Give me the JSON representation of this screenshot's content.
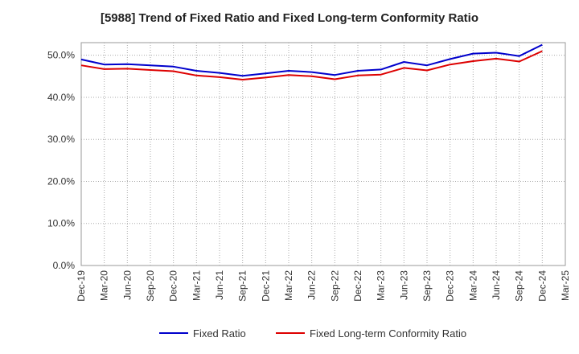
{
  "chart_data": {
    "type": "line",
    "title": "[5988]  Trend of Fixed Ratio and Fixed Long-term Conformity Ratio",
    "xlabel": "",
    "ylabel": "",
    "x": [
      "Dec-19",
      "Mar-20",
      "Jun-20",
      "Sep-20",
      "Dec-20",
      "Mar-21",
      "Jun-21",
      "Sep-21",
      "Dec-21",
      "Mar-22",
      "Jun-22",
      "Sep-22",
      "Dec-22",
      "Mar-23",
      "Jun-23",
      "Sep-23",
      "Dec-23",
      "Mar-24",
      "Jun-24",
      "Sep-24",
      "Dec-24",
      "Mar-25"
    ],
    "y_ticks": [
      "0.0%",
      "10.0%",
      "20.0%",
      "30.0%",
      "40.0%",
      "50.0%"
    ],
    "ylim": [
      0,
      53
    ],
    "grid": true,
    "legend_position": "bottom",
    "series": [
      {
        "name": "Fixed Ratio",
        "color": "#0000cc",
        "values": [
          49.0,
          47.8,
          47.9,
          47.6,
          47.3,
          46.3,
          45.8,
          45.1,
          45.7,
          46.3,
          46.0,
          45.3,
          46.3,
          46.6,
          48.4,
          47.6,
          49.1,
          50.4,
          50.6,
          49.8,
          52.5,
          null
        ]
      },
      {
        "name": "Fixed Long-term Conformity Ratio",
        "color": "#dd0000",
        "values": [
          47.6,
          46.7,
          46.8,
          46.5,
          46.2,
          45.2,
          44.8,
          44.2,
          44.7,
          45.3,
          45.0,
          44.3,
          45.2,
          45.4,
          47.0,
          46.4,
          47.8,
          48.6,
          49.2,
          48.5,
          51.0,
          null
        ]
      }
    ]
  }
}
